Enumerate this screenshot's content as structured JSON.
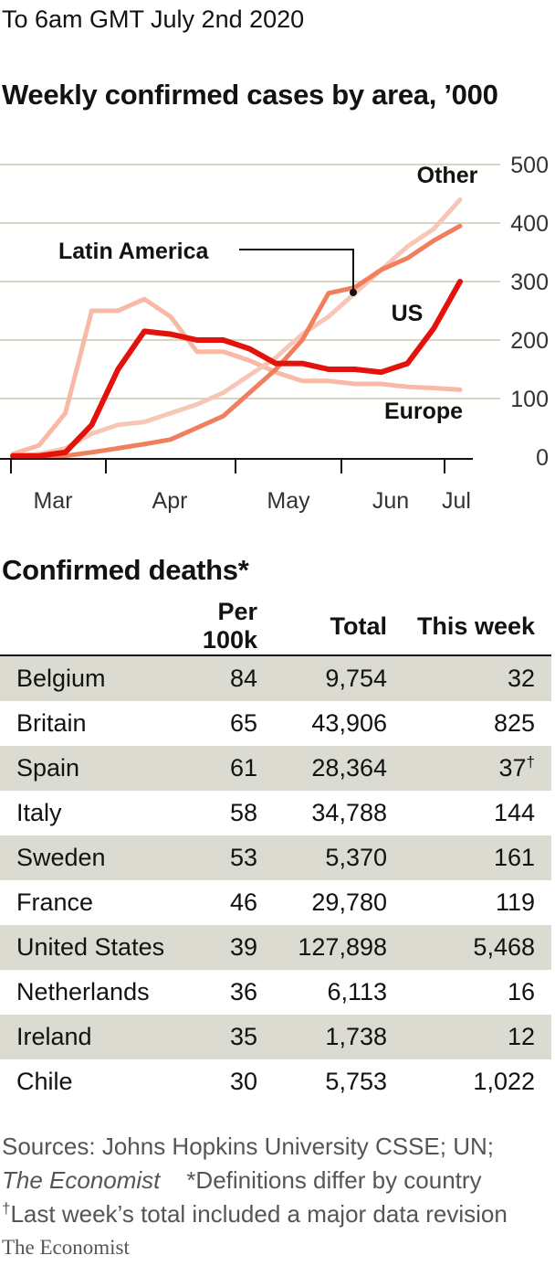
{
  "header": {
    "subtitle": "To 6am GMT July 2nd 2020"
  },
  "chart_data": {
    "type": "line",
    "title": "Weekly confirmed cases by area, ’000",
    "ylim": [
      0,
      500
    ],
    "yticks": [
      0,
      100,
      200,
      300,
      400,
      500
    ],
    "xticks": [
      "Mar",
      "Apr",
      "May",
      "Jun",
      "Jul"
    ],
    "grid": true,
    "x": [
      0,
      1,
      2,
      3,
      4,
      5,
      6,
      7,
      8,
      9,
      10,
      11,
      12,
      13,
      14,
      15,
      16,
      17
    ],
    "series": [
      {
        "name": "Europe",
        "color": "#f9b9a7",
        "values": [
          5,
          20,
          75,
          250,
          250,
          270,
          240,
          180,
          180,
          165,
          145,
          130,
          130,
          125,
          125,
          120,
          118,
          115
        ]
      },
      {
        "name": "Other",
        "color": "#f6c7b7",
        "values": [
          2,
          5,
          15,
          40,
          55,
          60,
          75,
          90,
          110,
          140,
          170,
          210,
          240,
          280,
          320,
          360,
          390,
          440
        ]
      },
      {
        "name": "Latin America",
        "color": "#f07f5e",
        "values": [
          0,
          0,
          2,
          8,
          15,
          22,
          30,
          50,
          70,
          110,
          150,
          200,
          280,
          290,
          320,
          340,
          370,
          395
        ]
      },
      {
        "name": "US",
        "color": "#e3120b",
        "values": [
          2,
          2,
          8,
          55,
          150,
          215,
          210,
          200,
          200,
          185,
          160,
          160,
          150,
          150,
          145,
          160,
          220,
          300
        ]
      }
    ]
  },
  "table": {
    "title": "Confirmed deaths*",
    "headers": [
      "",
      "Per 100k",
      "Total",
      "This week"
    ],
    "rows": [
      {
        "country": "Belgium",
        "per100k": "84",
        "total": "9,754",
        "week": "32",
        "dagger": ""
      },
      {
        "country": "Britain",
        "per100k": "65",
        "total": "43,906",
        "week": "825",
        "dagger": ""
      },
      {
        "country": "Spain",
        "per100k": "61",
        "total": "28,364",
        "week": "37",
        "dagger": "†"
      },
      {
        "country": "Italy",
        "per100k": "58",
        "total": "34,788",
        "week": "144",
        "dagger": ""
      },
      {
        "country": "Sweden",
        "per100k": "53",
        "total": "5,370",
        "week": "161",
        "dagger": ""
      },
      {
        "country": "France",
        "per100k": "46",
        "total": "29,780",
        "week": "119",
        "dagger": ""
      },
      {
        "country": "United States",
        "per100k": "39",
        "total": "127,898",
        "week": "5,468",
        "dagger": ""
      },
      {
        "country": "Netherlands",
        "per100k": "36",
        "total": "6,113",
        "week": "16",
        "dagger": ""
      },
      {
        "country": "Ireland",
        "per100k": "35",
        "total": "1,738",
        "week": "12",
        "dagger": ""
      },
      {
        "country": "Chile",
        "per100k": "30",
        "total": "5,753",
        "week": "1,022",
        "dagger": ""
      }
    ],
    "shade_color": "#dcdbd1"
  },
  "footer": {
    "sources_line1": "Sources: Johns Hopkins University CSSE; UN;",
    "sources_ital": "The Economist",
    "sources_def": "*Definitions differ by country",
    "dagger_mark": "†",
    "dagger_note": "Last week’s total included a major data revision",
    "brand": "The Economist"
  }
}
